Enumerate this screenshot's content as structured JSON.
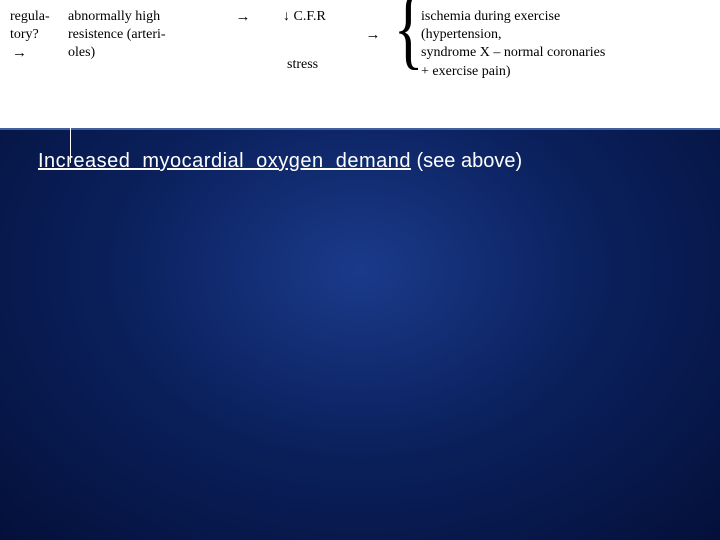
{
  "diagram": {
    "col1_line1": "regula-",
    "col1_line2": "tory?",
    "arrow1": "→",
    "col2_line1": "abnormally high",
    "col2_line2": "resistence (arteri-",
    "col2_line3": "oles)",
    "arrow2": "→",
    "cfr_prefix": "↓",
    "cfr": "C.F.R",
    "arrow3": "→",
    "stress": "stress",
    "right_line1": "ischemia during exercise",
    "right_line2": "(hypertension,",
    "right_line3": "syndrome  X – normal coronaries",
    "right_line4": "+ exercise pain)"
  },
  "heading_underlined": "Increased  myocardial  oxygen  demand",
  "heading_rest": "  (see above)",
  "colors": {
    "bg_center": "#1a3a8a",
    "bg_outer": "#04103a",
    "top_bg": "#ffffff",
    "text_white": "#ffffff",
    "text_black": "#000000"
  }
}
